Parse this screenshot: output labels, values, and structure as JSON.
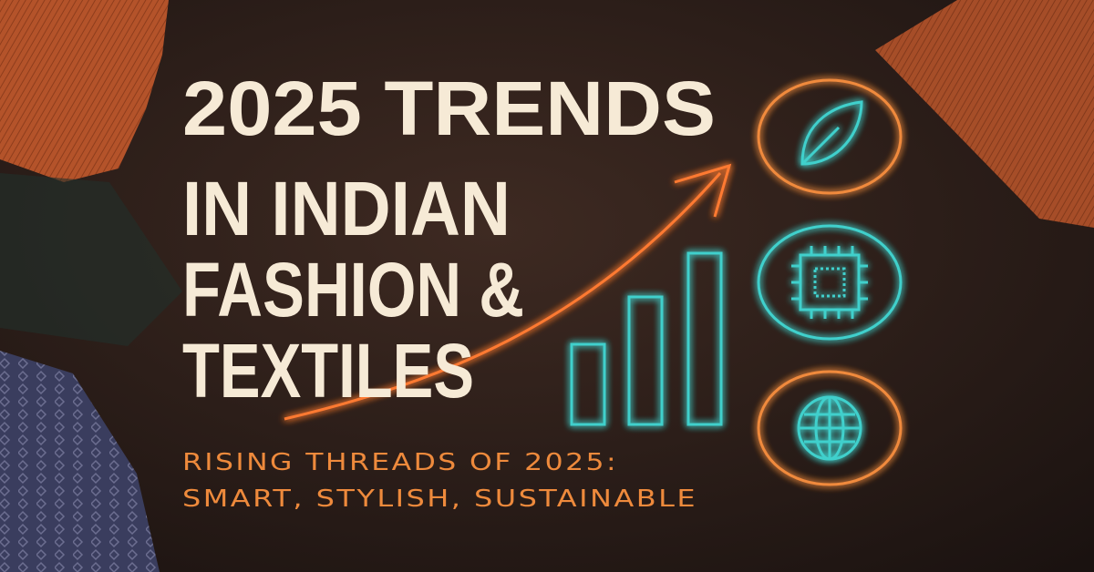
{
  "title": {
    "lines": [
      "2025 TRENDS",
      "IN INDIAN",
      "FASHION &",
      "TEXTILES"
    ]
  },
  "subtitle": {
    "lines": [
      "RISING THREADS OF 2025:",
      "SMART, STYLISH, SUSTAINABLE"
    ]
  }
}
